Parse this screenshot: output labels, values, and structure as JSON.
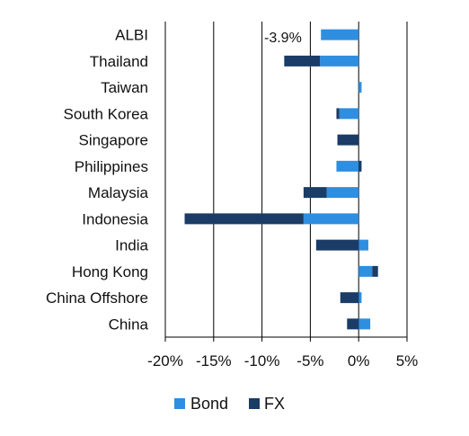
{
  "chart_data": {
    "type": "bar",
    "orientation": "horizontal",
    "stacked": true,
    "categories": [
      "ALBI",
      "Thailand",
      "Taiwan",
      "South Korea",
      "Singapore",
      "Philippines",
      "Malaysia",
      "Indonesia",
      "India",
      "Hong Kong",
      "China Offshore",
      "China"
    ],
    "series": [
      {
        "name": "Bond",
        "color": "#2e8ee0",
        "values": [
          -3.9,
          -4.0,
          0.3,
          -2.0,
          0.0,
          -2.3,
          -3.3,
          -5.7,
          1.0,
          1.4,
          0.3,
          1.2
        ]
      },
      {
        "name": "FX",
        "color": "#1a3c66",
        "values": [
          0.0,
          -3.7,
          0.0,
          -0.3,
          -2.2,
          0.3,
          -2.4,
          -12.3,
          -4.4,
          0.6,
          -1.9,
          -1.2
        ]
      }
    ],
    "xlim": [
      -20,
      5
    ],
    "xticks": [
      "-20%",
      "-15%",
      "-10%",
      "-5%",
      "0%",
      "5%"
    ],
    "annotation": "-3.9%",
    "grid": "vertical",
    "legend": "bottom"
  }
}
